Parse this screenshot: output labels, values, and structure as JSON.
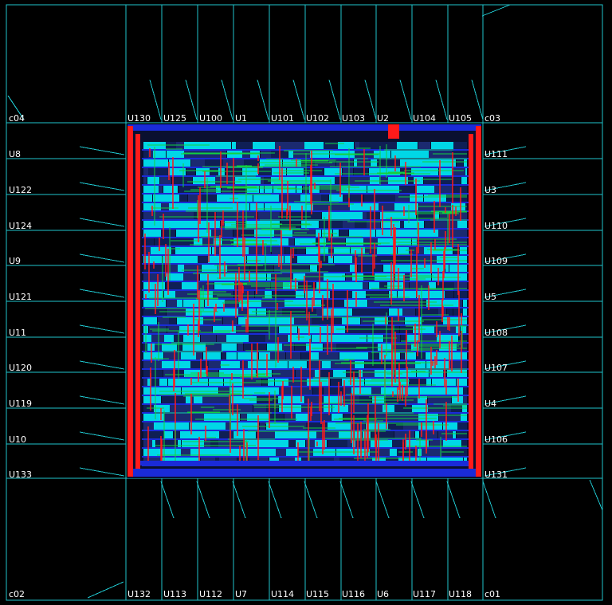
{
  "viewer": {
    "title": "",
    "colors": {
      "background": "#000000",
      "io_ring": "#1fc4cc",
      "label": "#ffffff",
      "core_fill": "#00d7e6",
      "metal_red": "#ff1a1a",
      "metal_green": "#12d040",
      "metal_blue": "#1a2bd8",
      "core_bg": "#101a40"
    }
  },
  "corners": {
    "top_left": "c04",
    "top_right": "c03",
    "bottom_left": "c02",
    "bottom_right": "c01"
  },
  "pads": {
    "top": [
      "U130",
      "U125",
      "U100",
      "U1",
      "U101",
      "U102",
      "U103",
      "U2",
      "U104",
      "U105"
    ],
    "bottom": [
      "U132",
      "U113",
      "U112",
      "U7",
      "U114",
      "U115",
      "U116",
      "U6",
      "U117",
      "U118"
    ],
    "left": [
      "U8",
      "U122",
      "U124",
      "U9",
      "U121",
      "U11",
      "U120",
      "U119",
      "U10",
      "U133"
    ],
    "right": [
      "U111",
      "U3",
      "U110",
      "U109",
      "U5",
      "U108",
      "U107",
      "U4",
      "U106",
      "U131"
    ]
  }
}
